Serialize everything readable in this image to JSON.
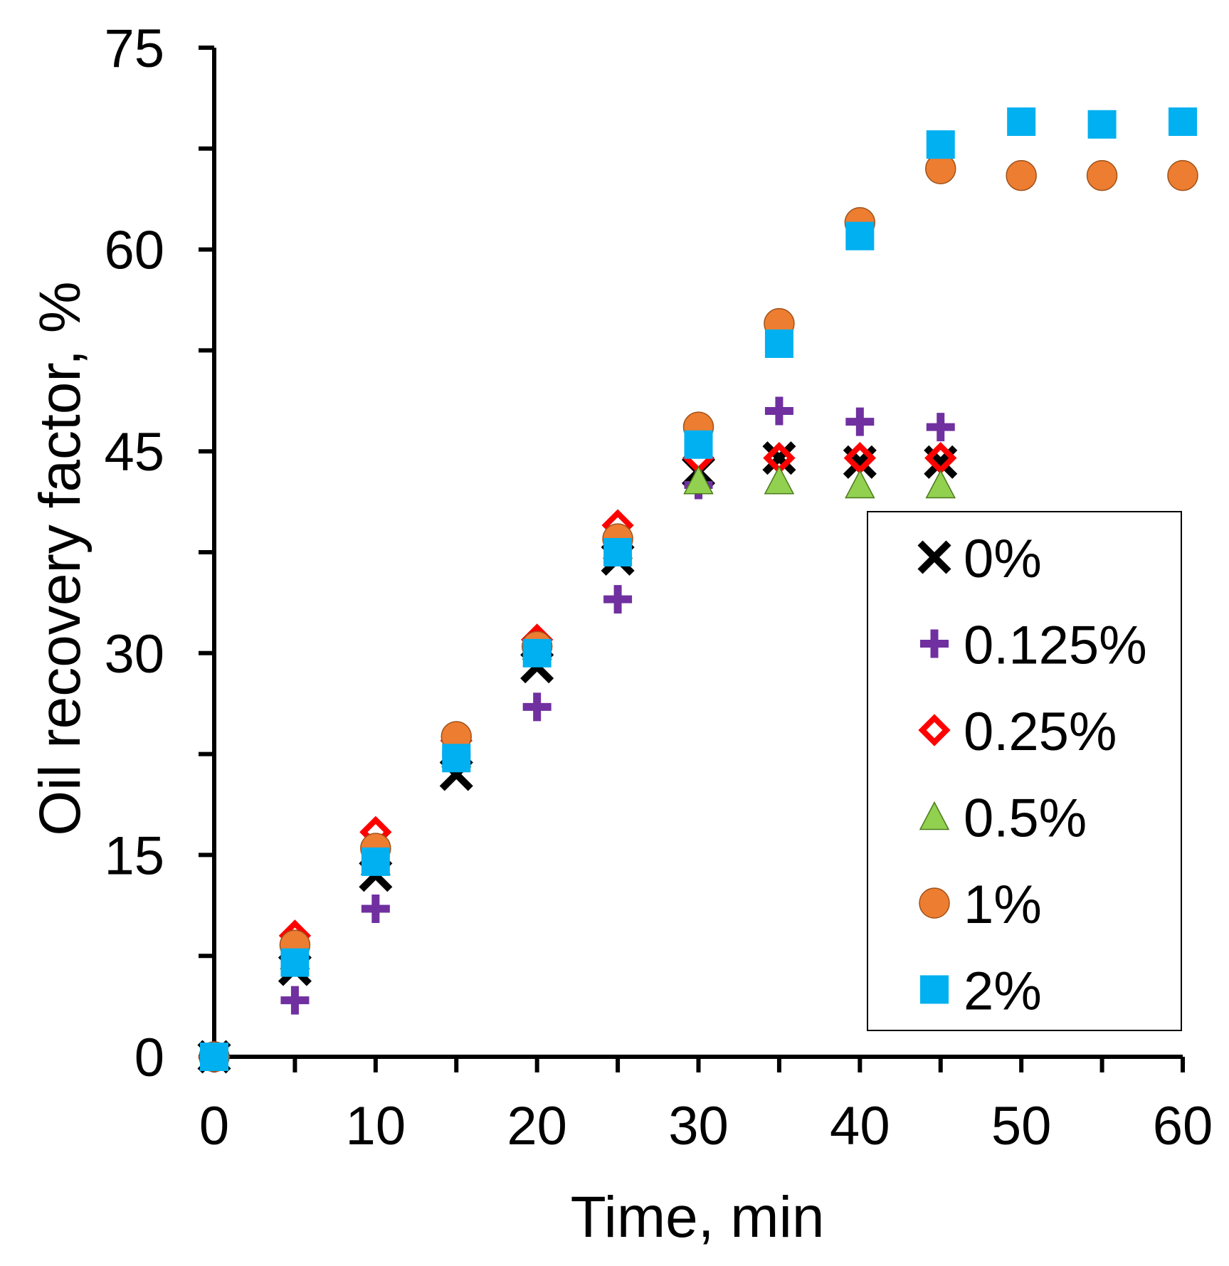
{
  "chart_data": {
    "type": "scatter",
    "title": "",
    "xlabel": "Time, min",
    "ylabel": "Oil recovery factor, %",
    "xlim": [
      0,
      60
    ],
    "ylim": [
      0,
      75
    ],
    "x_ticks": [
      0,
      10,
      20,
      30,
      40,
      50,
      60
    ],
    "x_minor_ticks": [
      5,
      15,
      25,
      35,
      45,
      55
    ],
    "y_ticks": [
      0,
      15,
      30,
      45,
      60,
      75
    ],
    "y_minor_ticks": [
      7.5,
      22.5,
      37.5,
      52.5,
      67.5
    ],
    "grid": false,
    "legend_position": "right",
    "series": [
      {
        "name": "0%",
        "marker": "x",
        "color": "#000000",
        "points": [
          [
            0,
            0
          ],
          [
            5,
            6.5
          ],
          [
            10,
            13.5
          ],
          [
            15,
            21
          ],
          [
            20,
            29
          ],
          [
            25,
            37
          ],
          [
            30,
            43.5
          ],
          [
            35,
            44.5
          ],
          [
            40,
            44.2
          ],
          [
            45,
            44.2
          ]
        ]
      },
      {
        "name": "0.125%",
        "marker": "plus",
        "color": "#7030A0",
        "points": [
          [
            0,
            0
          ],
          [
            5,
            4.2
          ],
          [
            10,
            11
          ],
          [
            15,
            22.5
          ],
          [
            20,
            26
          ],
          [
            25,
            34
          ],
          [
            30,
            42.5
          ],
          [
            35,
            48
          ],
          [
            40,
            47.2
          ],
          [
            45,
            46.8
          ]
        ]
      },
      {
        "name": "0.25%",
        "marker": "diamond",
        "color": "#FF0000",
        "points": [
          [
            0,
            0
          ],
          [
            5,
            9
          ],
          [
            10,
            16.7
          ],
          [
            15,
            23.5
          ],
          [
            20,
            31
          ],
          [
            25,
            39.5
          ],
          [
            30,
            44.5
          ],
          [
            35,
            44.5
          ],
          [
            40,
            44.5
          ],
          [
            45,
            44.5
          ]
        ]
      },
      {
        "name": "0.5%",
        "marker": "triangle",
        "color": "#92D050",
        "points": [
          [
            0,
            0
          ],
          [
            5,
            7.5
          ],
          [
            10,
            14.5
          ],
          [
            15,
            22.5
          ],
          [
            20,
            30.5
          ],
          [
            25,
            38
          ],
          [
            30,
            42.8
          ],
          [
            35,
            42.8
          ],
          [
            40,
            42.5
          ],
          [
            45,
            42.5
          ]
        ]
      },
      {
        "name": "1%",
        "marker": "circle",
        "color": "#ED7D31",
        "points": [
          [
            0,
            0
          ],
          [
            5,
            8.3
          ],
          [
            10,
            15.5
          ],
          [
            15,
            23.8
          ],
          [
            20,
            30.5
          ],
          [
            25,
            38.5
          ],
          [
            30,
            46.8
          ],
          [
            35,
            54.5
          ],
          [
            40,
            62
          ],
          [
            45,
            66
          ],
          [
            50,
            65.5
          ],
          [
            55,
            65.5
          ],
          [
            60,
            65.5
          ]
        ]
      },
      {
        "name": "2%",
        "marker": "square",
        "color": "#00B0F0",
        "points": [
          [
            0,
            0
          ],
          [
            5,
            7
          ],
          [
            10,
            14.5
          ],
          [
            15,
            22.2
          ],
          [
            20,
            30
          ],
          [
            25,
            37.5
          ],
          [
            30,
            45.5
          ],
          [
            35,
            53
          ],
          [
            40,
            61
          ],
          [
            45,
            67.8
          ],
          [
            50,
            69.5
          ],
          [
            55,
            69.3
          ],
          [
            60,
            69.5
          ]
        ]
      }
    ]
  }
}
